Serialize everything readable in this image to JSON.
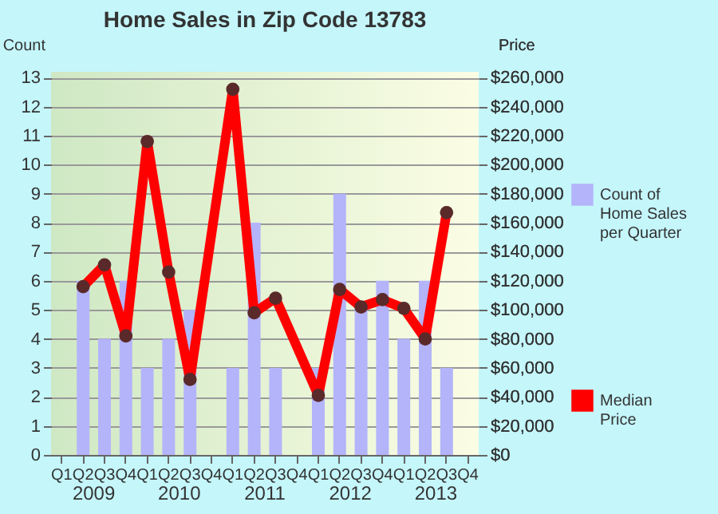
{
  "chart_data": {
    "type": "bar",
    "title": "Home Sales in Zip Code 13783",
    "categories": [
      "Q1",
      "Q2",
      "Q3",
      "Q4",
      "Q1",
      "Q2",
      "Q3",
      "Q4",
      "Q1",
      "Q2",
      "Q3",
      "Q4",
      "Q1",
      "Q2",
      "Q3",
      "Q4",
      "Q1",
      "Q2",
      "Q3",
      "Q4"
    ],
    "series": [
      {
        "name": "Count of Home Sales per Quarter",
        "color": "#b4b4fa",
        "values": [
          0,
          6,
          4,
          6,
          3,
          4,
          5,
          0,
          3,
          8,
          3,
          0,
          3,
          9,
          5,
          6,
          4,
          6,
          3,
          0
        ]
      },
      {
        "name": "Median Price",
        "type": "line",
        "axis": "y2",
        "color": "#ff0000",
        "values": [
          null,
          116000,
          131000,
          82000,
          216000,
          126000,
          52000,
          null,
          252000,
          98000,
          108000,
          null,
          41000,
          114000,
          102000,
          107000,
          101000,
          80000,
          167000,
          null
        ]
      }
    ],
    "ylabel": "Count",
    "y2label": "Price",
    "ylim": [
      0,
      13.2
    ],
    "yticks": [
      0,
      1,
      2,
      3,
      4,
      5,
      6,
      7,
      8,
      9,
      10,
      11,
      12,
      13
    ],
    "y2lim": [
      0,
      264000
    ],
    "y2ticks": [
      {
        "value": 0,
        "label": "$0"
      },
      {
        "value": 20000,
        "label": "$20,000"
      },
      {
        "value": 40000,
        "label": "$40,000"
      },
      {
        "value": 60000,
        "label": "$60,000"
      },
      {
        "value": 80000,
        "label": "$80,000"
      },
      {
        "value": 100000,
        "label": "$100,000"
      },
      {
        "value": 120000,
        "label": "$120,000"
      },
      {
        "value": 140000,
        "label": "$140,000"
      },
      {
        "value": 160000,
        "label": "$160,000"
      },
      {
        "value": 180000,
        "label": "$180,000"
      },
      {
        "value": 200000,
        "label": "$200,000"
      },
      {
        "value": 220000,
        "label": "$220,000"
      },
      {
        "value": 240000,
        "label": "$240,000"
      },
      {
        "value": 260000,
        "label": "$260,000"
      }
    ],
    "annotations": [
      "2009",
      "2010",
      "2011",
      "2012",
      "2013"
    ],
    "grid": "y",
    "legend": "right",
    "marker": "circle"
  }
}
